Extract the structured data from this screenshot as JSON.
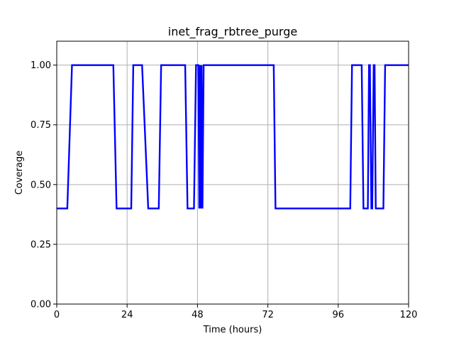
{
  "chart_data": {
    "type": "line",
    "title": "inet_frag_rbtree_purge",
    "xlabel": "Time (hours)",
    "ylabel": "Coverage",
    "xlim": [
      0,
      120
    ],
    "ylim": [
      0,
      1.1
    ],
    "xticks": [
      0,
      24,
      48,
      72,
      96,
      120
    ],
    "xtick_labels": [
      "0",
      "24",
      "48",
      "72",
      "96",
      "120"
    ],
    "yticks": [
      0,
      0.25,
      0.5,
      0.75,
      1.0
    ],
    "ytick_labels": [
      "0.00",
      "0.25",
      "0.50",
      "0.75",
      "1.00"
    ],
    "grid": true,
    "series": [
      {
        "color": "#0000ff",
        "x": [
          0,
          3.6,
          5.2,
          19.3,
          20.4,
          25.4,
          26.1,
          29.1,
          31.2,
          34.8,
          35.6,
          43.8,
          44.6,
          46.8,
          47.5,
          48.3,
          48.6,
          48.9,
          49.1,
          49.4,
          49.7,
          50.1,
          74.0,
          74.6,
          100.1,
          100.7,
          104.0,
          104.6,
          106.1,
          106.5,
          106.8,
          107.3,
          107.6,
          108.1,
          108.4,
          108.8,
          109.4,
          111.4,
          112.0,
          120
        ],
        "y": [
          0.4,
          0.4,
          1.0,
          1.0,
          0.4,
          0.4,
          1.0,
          1.0,
          0.4,
          0.4,
          1.0,
          1.0,
          0.4,
          0.4,
          1.0,
          1.0,
          0.4,
          1.0,
          0.4,
          1.0,
          0.4,
          1.0,
          1.0,
          0.4,
          0.4,
          1.0,
          1.0,
          0.4,
          0.4,
          1.0,
          1.0,
          0.4,
          0.4,
          1.0,
          1.0,
          0.4,
          0.4,
          0.4,
          1.0,
          1.0
        ]
      }
    ]
  }
}
